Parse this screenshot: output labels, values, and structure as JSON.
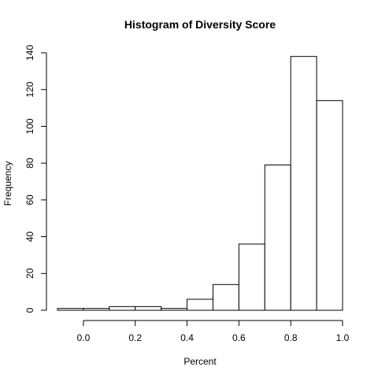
{
  "chart_data": {
    "type": "bar",
    "title": "Histogram of Diversity Score",
    "xlabel": "Percent",
    "ylabel": "Frequency",
    "bins": [
      {
        "from": -0.1,
        "to": 0.0,
        "count": 1
      },
      {
        "from": 0.0,
        "to": 0.1,
        "count": 1
      },
      {
        "from": 0.1,
        "to": 0.2,
        "count": 2
      },
      {
        "from": 0.2,
        "to": 0.3,
        "count": 2
      },
      {
        "from": 0.3,
        "to": 0.4,
        "count": 1
      },
      {
        "from": 0.4,
        "to": 0.5,
        "count": 6
      },
      {
        "from": 0.5,
        "to": 0.6,
        "count": 14
      },
      {
        "from": 0.6,
        "to": 0.7,
        "count": 36
      },
      {
        "from": 0.7,
        "to": 0.8,
        "count": 79
      },
      {
        "from": 0.8,
        "to": 0.9,
        "count": 138
      },
      {
        "from": 0.9,
        "to": 1.0,
        "count": 114
      }
    ],
    "xlim": [
      -0.1,
      1.0
    ],
    "ylim": [
      0,
      140
    ],
    "x_ticks": [
      0.0,
      0.2,
      0.4,
      0.6,
      0.8,
      1.0
    ],
    "x_tick_labels": [
      "0.0",
      "0.2",
      "0.4",
      "0.6",
      "0.8",
      "1.0"
    ],
    "y_ticks": [
      0,
      20,
      40,
      60,
      80,
      100,
      120,
      140
    ],
    "y_tick_labels": [
      "0",
      "20",
      "40",
      "60",
      "80",
      "100",
      "120",
      "140"
    ],
    "grid": false,
    "bar_fill": "#ffffff",
    "bar_stroke": "#000000"
  }
}
